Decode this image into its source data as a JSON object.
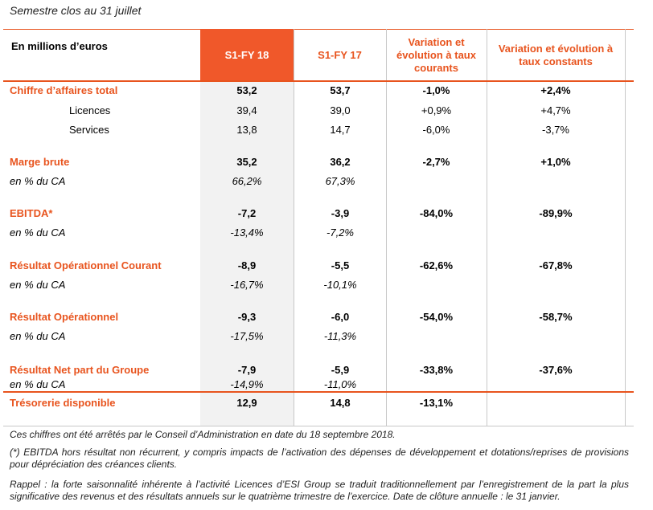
{
  "subtitle": "Semestre clos au 31 juillet",
  "header": {
    "unit": "En millions d’euros",
    "col1": "S1-FY 18",
    "col2": "S1-FY 17",
    "col3": "Variation et évolution à taux courants",
    "col4": "Variation et évolution à taux constants"
  },
  "rows": [
    {
      "label": "Chiffre d’affaires total",
      "v1": "53,2",
      "v2": "53,7",
      "v3": "-1,0%",
      "v4": "+2,4%"
    },
    {
      "label": "Licences",
      "v1": "39,4",
      "v2": "39,0",
      "v3": "+0,9%",
      "v4": "+4,7%"
    },
    {
      "label": "Services",
      "v1": "13,8",
      "v2": "14,7",
      "v3": "-6,0%",
      "v4": "-3,7%"
    },
    {
      "label": "Marge brute",
      "v1": "35,2",
      "v2": "36,2",
      "v3": "-2,7%",
      "v4": "+1,0%"
    },
    {
      "label": "en % du CA",
      "v1": "66,2%",
      "v2": "67,3%"
    },
    {
      "label": "EBITDA*",
      "v1": "-7,2",
      "v2": "-3,9",
      "v3": "-84,0%",
      "v4": "-89,9%"
    },
    {
      "label": "en % du CA",
      "v1": "-13,4%",
      "v2": "-7,2%"
    },
    {
      "label": "Résultat Opérationnel Courant",
      "v1": "-8,9",
      "v2": "-5,5",
      "v3": "-62,6%",
      "v4": "-67,8%"
    },
    {
      "label": "en % du CA",
      "v1": "-16,7%",
      "v2": "-10,1%"
    },
    {
      "label": "Résultat Opérationnel",
      "v1": "-9,3",
      "v2": "-6,0",
      "v3": "-54,0%",
      "v4": "-58,7%"
    },
    {
      "label": "en % du CA",
      "v1": "-17,5%",
      "v2": "-11,3%"
    },
    {
      "label": "Résultat Net part du Groupe",
      "v1": "-7,9",
      "v2": "-5,9",
      "v3": "-33,8%",
      "v4": "-37,6%"
    },
    {
      "label": "en % du CA",
      "v1": "-14,9%",
      "v2": "-11,0%"
    },
    {
      "label": "Trésorerie disponible",
      "v1": "12,9",
      "v2": "14,8",
      "v3": "-13,1%"
    }
  ],
  "notes": {
    "n1": "Ces chiffres ont été arrêtés par le Conseil d’Administration en date du 18 septembre 2018.",
    "n2": " (*) EBITDA hors résultat non récurrent, y compris impacts de l’activation des dépenses de développement et dotations/reprises de provisions pour dépréciation des créances clients.",
    "n3": "Rappel : la forte saisonnalité inhérente à l’activité Licences d’ESI Group se traduit traditionnellement par l’enregistrement de la part la plus significative des revenus et des résultats annuels sur le quatrième trimestre de l’exercice. Date de clôture annuelle : le 31 janvier."
  },
  "colors": {
    "accent": "#e8541e",
    "header_fill": "#f0582a",
    "shade": "#f2f2f2"
  }
}
